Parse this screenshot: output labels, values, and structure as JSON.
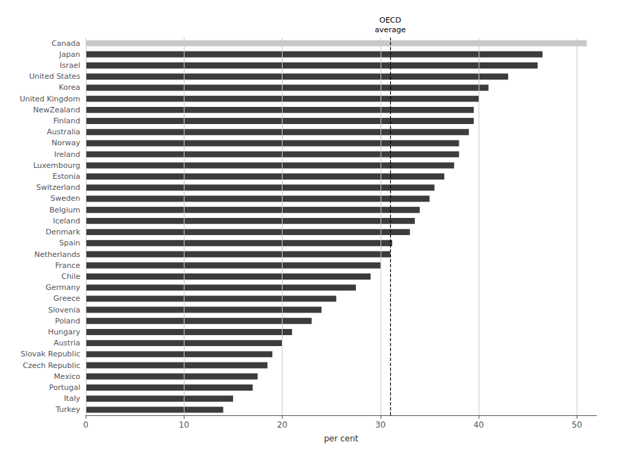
{
  "chart_data": {
    "type": "bar",
    "orientation": "horizontal",
    "categories": [
      "Turkey",
      "Italy",
      "Portugal",
      "Mexico",
      "Czech Republic",
      "Slovak Republic",
      "Austria",
      "Hungary",
      "Poland",
      "Slovenia",
      "Greece",
      "Germany",
      "Chile",
      "France",
      "Netherlands",
      "Spain",
      "Denmark",
      "Iceland",
      "Belgium",
      "Sweden",
      "Switzerland",
      "Estonia",
      "Luxembourg",
      "Ireland",
      "Norway",
      "Australia",
      "Finland",
      "NewZealand",
      "United Kingdom",
      "Korea",
      "United States",
      "Israel",
      "Japan",
      "Canada"
    ],
    "values": [
      14.0,
      15.0,
      17.0,
      17.5,
      18.5,
      19.0,
      20.0,
      21.0,
      23.0,
      24.0,
      25.5,
      27.5,
      29.0,
      30.0,
      31.0,
      31.2,
      33.0,
      33.5,
      34.0,
      35.0,
      35.5,
      36.5,
      37.5,
      38.0,
      38.0,
      39.0,
      39.5,
      39.5,
      40.0,
      41.0,
      43.0,
      46.0,
      46.5,
      51.0
    ],
    "colors": [
      "#3c3c3c",
      "#3c3c3c",
      "#3c3c3c",
      "#3c3c3c",
      "#3c3c3c",
      "#3c3c3c",
      "#3c3c3c",
      "#3c3c3c",
      "#3c3c3c",
      "#3c3c3c",
      "#3c3c3c",
      "#3c3c3c",
      "#3c3c3c",
      "#3c3c3c",
      "#3c3c3c",
      "#3c3c3c",
      "#3c3c3c",
      "#3c3c3c",
      "#3c3c3c",
      "#3c3c3c",
      "#3c3c3c",
      "#3c3c3c",
      "#3c3c3c",
      "#3c3c3c",
      "#3c3c3c",
      "#3c3c3c",
      "#3c3c3c",
      "#3c3c3c",
      "#3c3c3c",
      "#3c3c3c",
      "#3c3c3c",
      "#3c3c3c",
      "#3c3c3c",
      "#c8c8c8"
    ],
    "xlabel": "per cent",
    "xlim": [
      0,
      52
    ],
    "xticks": [
      0,
      10,
      20,
      30,
      40,
      50
    ],
    "grid": true,
    "reference_lines": [
      {
        "value": 31.0,
        "label": "OECD\naverage"
      }
    ]
  }
}
